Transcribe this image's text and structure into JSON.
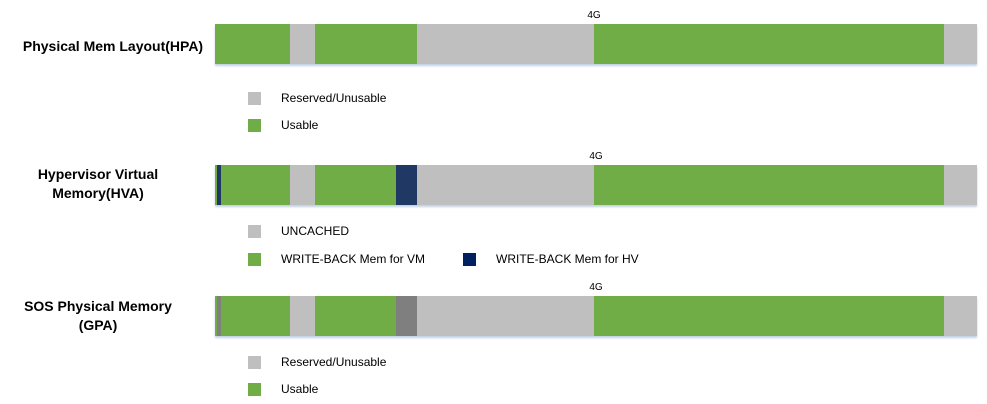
{
  "colors": {
    "reserved": "#bfbfbf",
    "usable": "#70ad47",
    "writeback_hv": "#1f3864",
    "dark_gray": "#7f7f7f"
  },
  "rows": [
    {
      "label": "Physical Mem Layout(HPA)",
      "marker": "4G",
      "segments": [
        {
          "start": 0.0,
          "end": 0.0985,
          "color": "usable"
        },
        {
          "start": 0.1315,
          "end": 0.2655,
          "color": "usable"
        },
        {
          "start": 0.4975,
          "end": 0.957,
          "color": "usable"
        }
      ],
      "legend": [
        {
          "label": "Reserved/Unusable",
          "color": "reserved"
        },
        {
          "label": "Usable",
          "color": "usable"
        }
      ]
    },
    {
      "label": "Hypervisor Virtual Memory(HVA)",
      "marker": "4G",
      "segments": [
        {
          "start": 0.0,
          "end": 0.003,
          "color": "usable"
        },
        {
          "start": 0.003,
          "end": 0.008,
          "color": "writeback_hv"
        },
        {
          "start": 0.008,
          "end": 0.0985,
          "color": "usable"
        },
        {
          "start": 0.1315,
          "end": 0.2375,
          "color": "usable"
        },
        {
          "start": 0.2375,
          "end": 0.2655,
          "color": "writeback_hv"
        },
        {
          "start": 0.4975,
          "end": 0.957,
          "color": "usable"
        }
      ],
      "legend": [
        {
          "label": "UNCACHED",
          "color": "reserved"
        },
        {
          "label": "WRITE-BACK Mem for VM",
          "color": "usable"
        },
        {
          "label": "WRITE-BACK Mem for HV",
          "color": "writeback_hv"
        }
      ]
    },
    {
      "label": "SOS Physical Memory (GPA)",
      "marker": "4G",
      "segments": [
        {
          "start": 0.0,
          "end": 0.003,
          "color": "usable"
        },
        {
          "start": 0.003,
          "end": 0.008,
          "color": "dark_gray"
        },
        {
          "start": 0.008,
          "end": 0.0985,
          "color": "usable"
        },
        {
          "start": 0.1315,
          "end": 0.2375,
          "color": "usable"
        },
        {
          "start": 0.2375,
          "end": 0.2655,
          "color": "dark_gray"
        },
        {
          "start": 0.4975,
          "end": 0.957,
          "color": "usable"
        }
      ],
      "legend": [
        {
          "label": "Reserved/Unusable",
          "color": "reserved"
        },
        {
          "label": "Usable",
          "color": "usable"
        }
      ]
    }
  ]
}
